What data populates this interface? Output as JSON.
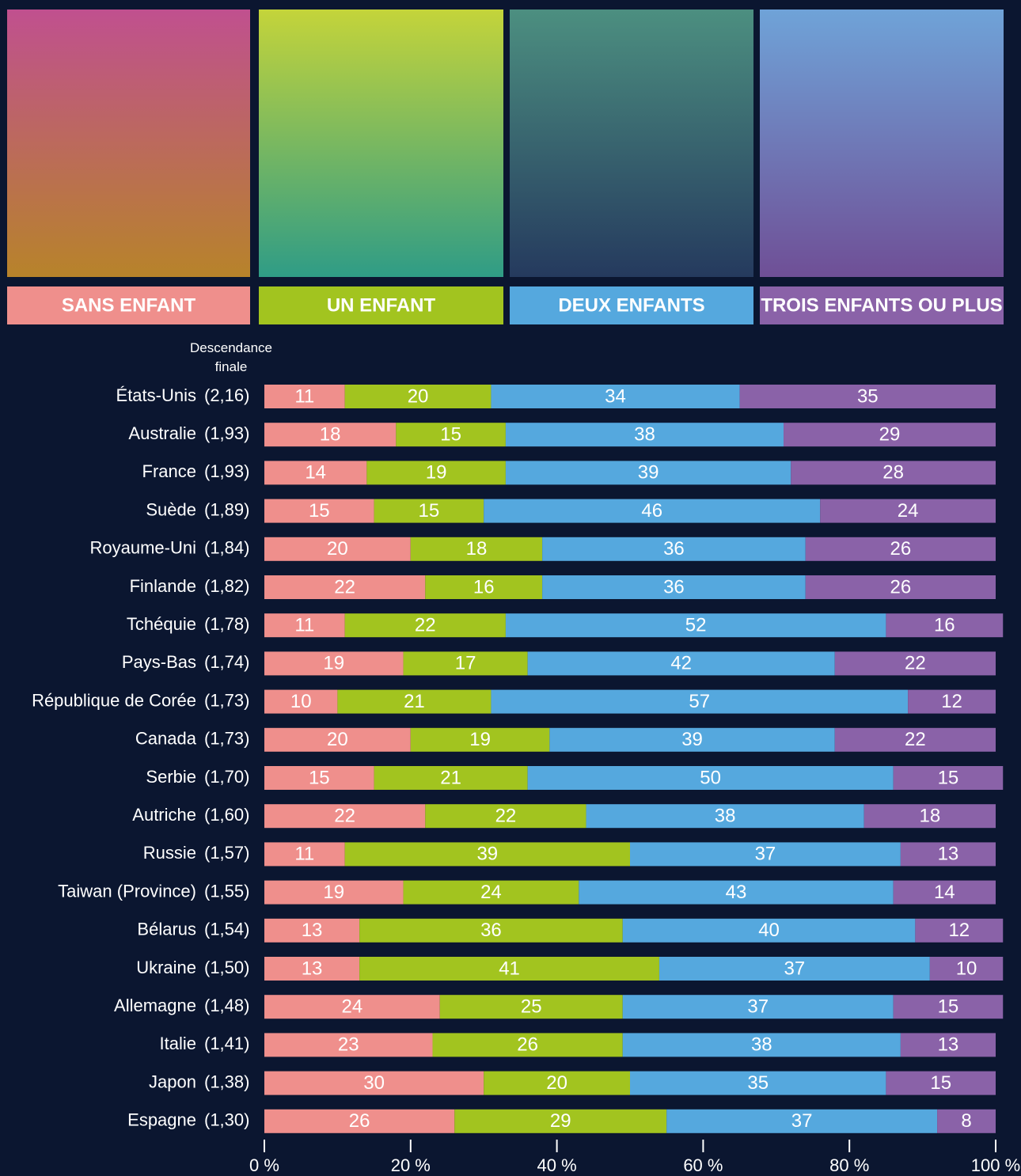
{
  "chart_data": {
    "type": "stacked_bar_horizontal",
    "descendance_header": "Descendance finale",
    "categories": [
      "États-Unis",
      "Australie",
      "France",
      "Suède",
      "Royaume-Uni",
      "Finlande",
      "Tchéquie",
      "Pays-Bas",
      "République de Corée",
      "Canada",
      "Serbie",
      "Autriche",
      "Russie",
      "Taiwan (Province)",
      "Bélarus",
      "Ukraine",
      "Allemagne",
      "Italie",
      "Japon",
      "Espagne"
    ],
    "descendance_labels": [
      "(2,16)",
      "(1,93)",
      "(1,93)",
      "(1,89)",
      "(1,84)",
      "(1,82)",
      "(1,78)",
      "(1,74)",
      "(1,73)",
      "(1,73)",
      "(1,70)",
      "(1,60)",
      "(1,57)",
      "(1,55)",
      "(1,54)",
      "(1,50)",
      "(1,48)",
      "(1,41)",
      "(1,38)",
      "(1,30)"
    ],
    "series": [
      {
        "name": "SANS ENFANT",
        "color": "#ef8f8c",
        "values": [
          11,
          18,
          14,
          15,
          20,
          22,
          11,
          19,
          10,
          20,
          15,
          22,
          11,
          19,
          13,
          13,
          24,
          23,
          30,
          26
        ]
      },
      {
        "name": "UN ENFANT",
        "color": "#a2c41f",
        "values": [
          20,
          15,
          19,
          15,
          18,
          16,
          22,
          17,
          21,
          19,
          21,
          22,
          39,
          24,
          36,
          41,
          25,
          26,
          20,
          29
        ]
      },
      {
        "name": "DEUX ENFANTS",
        "color": "#55a8de",
        "values": [
          34,
          38,
          39,
          46,
          36,
          36,
          52,
          42,
          57,
          39,
          50,
          38,
          37,
          43,
          40,
          37,
          37,
          38,
          35,
          37
        ]
      },
      {
        "name": "TROIS ENFANTS OU PLUS",
        "color": "#8a62a8",
        "values": [
          35,
          29,
          28,
          24,
          26,
          26,
          16,
          22,
          12,
          22,
          15,
          18,
          13,
          14,
          12,
          10,
          15,
          13,
          15,
          8
        ]
      }
    ],
    "xlim": [
      0,
      100
    ],
    "xticks": [
      {
        "value": 0,
        "label": "0 %"
      },
      {
        "value": 20,
        "label": "20 %"
      },
      {
        "value": 40,
        "label": "40 %"
      },
      {
        "value": 60,
        "label": "60 %"
      },
      {
        "value": 80,
        "label": "80 %"
      },
      {
        "value": 100,
        "label": "100 %"
      }
    ]
  }
}
